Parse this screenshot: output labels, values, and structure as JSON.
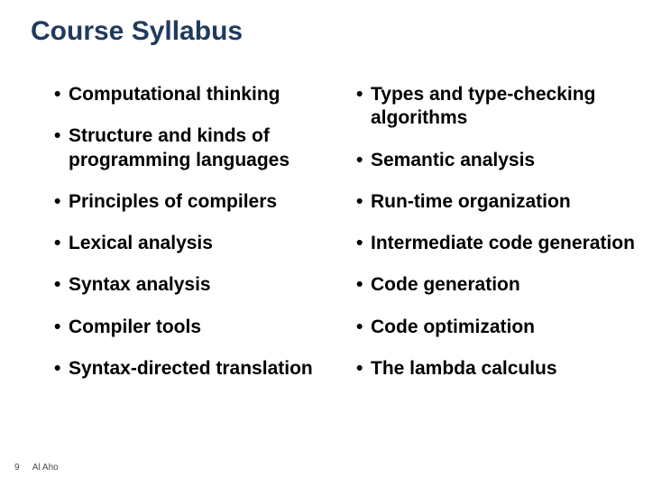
{
  "slide": {
    "title": "Course Syllabus",
    "left_column": [
      "Computational thinking",
      "Structure and kinds of programming languages",
      "Principles of compilers",
      "Lexical analysis",
      "Syntax analysis",
      "Compiler tools",
      "Syntax-directed translation"
    ],
    "right_column": [
      "Types and type-checking algorithms",
      "Semantic analysis",
      "Run-time organization",
      "Intermediate code generation",
      "Code generation",
      "Code optimization",
      "The lambda calculus"
    ],
    "footer": {
      "page_number": "9",
      "author": "Al Aho"
    },
    "styling": {
      "title_color": "#1f3a5f",
      "title_fontsize": 30,
      "bullet_color": "#000000",
      "bullet_fontsize": 21,
      "bullet_fontweight": "bold",
      "background_color": "#ffffff",
      "footer_fontsize": 10,
      "footer_color": "#4a4a4a"
    }
  }
}
